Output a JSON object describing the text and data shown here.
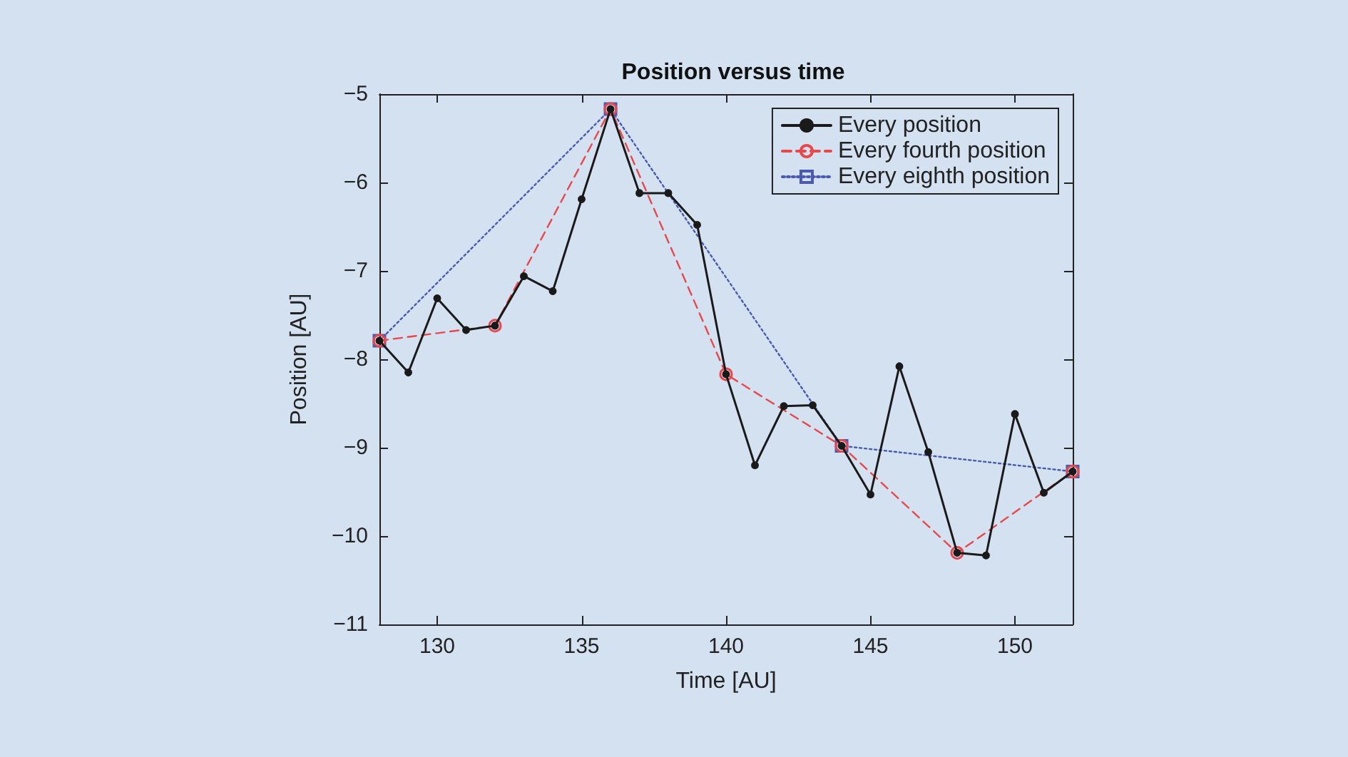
{
  "chart_data": {
    "type": "line",
    "title": "Position versus time",
    "xlabel": "Time [AU]",
    "ylabel": "Position [AU]",
    "xlim": [
      128,
      152
    ],
    "xticks": [
      130,
      135,
      140,
      145,
      150
    ],
    "ylim": [
      -11,
      -5
    ],
    "yticks": [
      -11,
      -10,
      -9,
      -8,
      -7,
      -6,
      -5
    ],
    "grid": false,
    "legend": "top right",
    "series": [
      {
        "name": "Every position",
        "color": "#1a1a1a",
        "marker": "circle",
        "line_style": "solid",
        "x": [
          128,
          129,
          130,
          131,
          132,
          133,
          134,
          135,
          136,
          137,
          138,
          139,
          140,
          141,
          142,
          143,
          144,
          145,
          146,
          147,
          148,
          149,
          150,
          151,
          152
        ],
        "values": [
          -7.79,
          -8.15,
          -7.31,
          -7.67,
          -7.62,
          -7.06,
          -7.23,
          -6.19,
          -5.17,
          -6.12,
          -6.12,
          -6.48,
          -8.17,
          -9.2,
          -8.53,
          -8.52,
          -8.98,
          -9.53,
          -8.08,
          -9.05,
          -10.19,
          -10.22,
          -8.62,
          -9.51,
          -9.27
        ]
      },
      {
        "name": "Every fourth position",
        "color": "#e8474c",
        "marker": "circle",
        "line_style": "dashed",
        "x": [
          128,
          132,
          136,
          140,
          144,
          148,
          152
        ],
        "values": [
          -7.79,
          -7.62,
          -5.17,
          -8.17,
          -8.98,
          -10.19,
          -9.27
        ]
      },
      {
        "name": "Every eighth position",
        "color": "#4a5ab0",
        "marker": "square",
        "line_style": "dotted",
        "x": [
          128,
          136,
          144,
          152
        ],
        "values": [
          -7.79,
          -5.17,
          -8.98,
          -9.27
        ]
      }
    ]
  }
}
